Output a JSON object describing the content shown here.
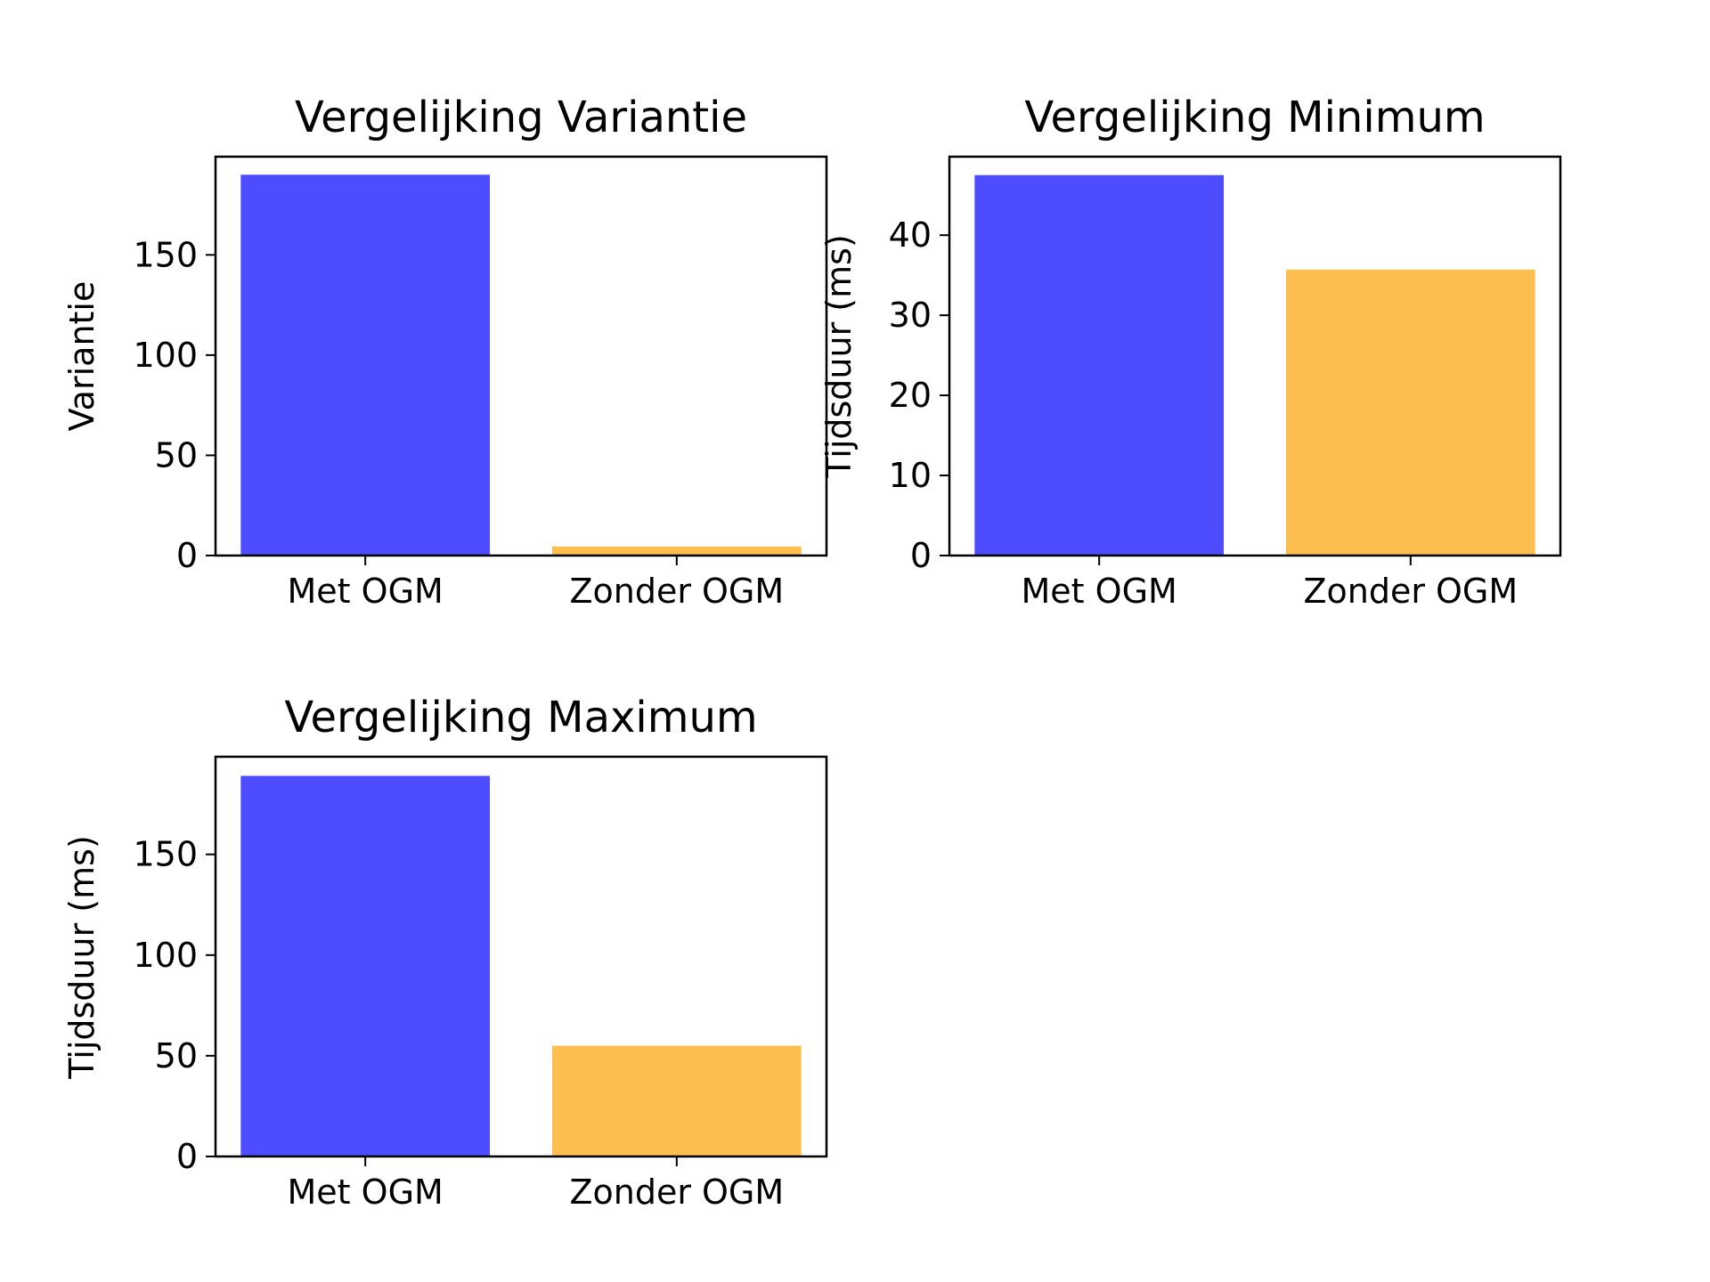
{
  "chart_data": [
    {
      "type": "bar",
      "title": "Vergelijking Variantie",
      "ylabel": "Variantie",
      "categories": [
        "Met OGM",
        "Zonder OGM"
      ],
      "values": [
        190,
        4.5
      ],
      "bar_colors": [
        "#4d4dff",
        "#fcbf4f"
      ],
      "ylim": [
        0,
        199
      ],
      "yticks": [
        0,
        50,
        100,
        150
      ],
      "ytick_labels": [
        "0",
        "50",
        "100",
        "150"
      ],
      "grid": false
    },
    {
      "type": "bar",
      "title": "Vergelijking Minimum",
      "ylabel": "Tijdsduur (ms)",
      "categories": [
        "Met OGM",
        "Zonder OGM"
      ],
      "values": [
        47.5,
        35.7
      ],
      "bar_colors": [
        "#4d4dff",
        "#fcbf4f"
      ],
      "ylim": [
        0,
        49.8
      ],
      "yticks": [
        0,
        10,
        20,
        30,
        40
      ],
      "ytick_labels": [
        "0",
        "10",
        "20",
        "30",
        "40"
      ],
      "grid": false
    },
    {
      "type": "bar",
      "title": "Vergelijking Maximum",
      "ylabel": "Tijdsduur (ms)",
      "categories": [
        "Met OGM",
        "Zonder OGM"
      ],
      "values": [
        189,
        55
      ],
      "bar_colors": [
        "#4d4dff",
        "#fcbf4f"
      ],
      "ylim": [
        0,
        198.5
      ],
      "yticks": [
        0,
        50,
        100,
        150
      ],
      "ytick_labels": [
        "0",
        "50",
        "100",
        "150"
      ],
      "grid": false
    }
  ]
}
